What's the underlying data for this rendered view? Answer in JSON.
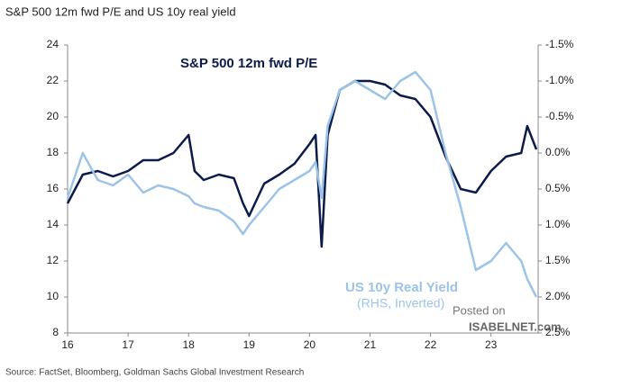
{
  "chart_data": {
    "type": "line",
    "title": "S&P 500 12m fwd P/E and US 10y real yield",
    "source": "Source: FactSet, Bloomberg, Goldman Sachs Global Investment Research",
    "watermark": [
      "Posted on",
      "ISABELNET.com"
    ],
    "annotations": [
      "(RHS, Inverted)"
    ],
    "x": [
      16.0,
      16.25,
      16.5,
      16.75,
      17.0,
      17.25,
      17.5,
      17.75,
      18.0,
      18.1,
      18.25,
      18.5,
      18.75,
      18.9,
      19.0,
      19.25,
      19.5,
      19.75,
      20.0,
      20.1,
      20.2,
      20.3,
      20.5,
      20.75,
      21.0,
      21.25,
      21.5,
      21.75,
      22.0,
      22.25,
      22.5,
      22.75,
      23.0,
      23.25,
      23.5,
      23.6,
      23.75
    ],
    "series": [
      {
        "name": "S&P 500 12m fwd P/E",
        "color": "#0d1b4b",
        "values": [
          15.2,
          16.8,
          17.0,
          16.7,
          17.0,
          17.6,
          17.6,
          18.0,
          19.0,
          17.0,
          16.5,
          16.8,
          16.6,
          15.2,
          14.5,
          16.3,
          16.8,
          17.4,
          18.5,
          19.0,
          12.8,
          19.0,
          21.5,
          22.0,
          22.0,
          21.8,
          21.2,
          21.0,
          20.0,
          17.8,
          16.0,
          15.8,
          17.0,
          17.8,
          18.0,
          19.5,
          18.2
        ]
      },
      {
        "name": "US 10y Real Yield",
        "color": "#9dc3e6",
        "axis": "y2",
        "values": [
          0.625,
          0.0,
          0.375,
          0.45,
          0.3,
          0.55,
          0.45,
          0.5,
          0.6,
          0.7,
          0.75,
          0.8,
          0.95,
          1.125,
          1.0,
          0.75,
          0.5,
          0.375,
          0.25,
          0.125,
          0.625,
          -0.375,
          -0.875,
          -1.0,
          -0.875,
          -0.75,
          -1.0,
          -1.125,
          -0.875,
          0.0,
          0.75,
          1.625,
          1.5,
          1.25,
          1.5,
          1.75,
          2.0
        ]
      }
    ],
    "xlim": [
      16,
      23.78
    ],
    "xticks": [
      16,
      17,
      18,
      19,
      20,
      21,
      22,
      23
    ],
    "ylim": [
      8,
      24
    ],
    "yticks": [
      8,
      10,
      12,
      14,
      16,
      18,
      20,
      22,
      24
    ],
    "y2lim": [
      2.5,
      -1.5
    ],
    "y2ticks": [
      {
        "value": -1.5,
        "label": "-1.5%"
      },
      {
        "value": -1.0,
        "label": "-1.0%"
      },
      {
        "value": -0.5,
        "label": "-0.5%"
      },
      {
        "value": 0.0,
        "label": "0.0%"
      },
      {
        "value": 0.5,
        "label": "0.5%"
      },
      {
        "value": 1.0,
        "label": "1.0%"
      },
      {
        "value": 1.5,
        "label": "1.5%"
      },
      {
        "value": 2.0,
        "label": "2.0%"
      },
      {
        "value": 2.5,
        "label": "2.5%"
      }
    ],
    "grid": false
  }
}
